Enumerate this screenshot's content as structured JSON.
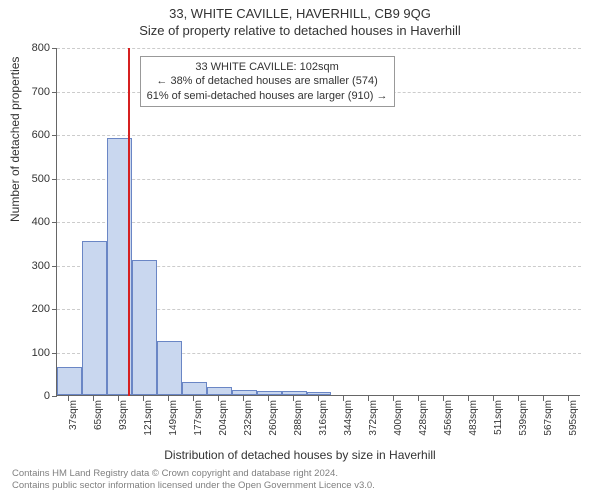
{
  "header": {
    "line1": "33, WHITE CAVILLE, HAVERHILL, CB9 9QG",
    "line2": "Size of property relative to detached houses in Haverhill"
  },
  "chart": {
    "type": "histogram",
    "ylabel": "Number of detached properties",
    "xlabel": "Distribution of detached houses by size in Haverhill",
    "ylim": [
      0,
      800
    ],
    "ytick_step": 100,
    "yticks": [
      0,
      100,
      200,
      300,
      400,
      500,
      600,
      700,
      800
    ],
    "background_color": "#ffffff",
    "grid_color": "#cccccc",
    "axis_color": "#666666",
    "bar_fill": "#c9d7ef",
    "bar_border": "#6a86c5",
    "categories": [
      "37sqm",
      "65sqm",
      "93sqm",
      "121sqm",
      "149sqm",
      "177sqm",
      "204sqm",
      "232sqm",
      "260sqm",
      "288sqm",
      "316sqm",
      "344sqm",
      "372sqm",
      "400sqm",
      "428sqm",
      "456sqm",
      "483sqm",
      "511sqm",
      "539sqm",
      "567sqm",
      "595sqm"
    ],
    "values": [
      65,
      355,
      590,
      310,
      125,
      30,
      18,
      12,
      10,
      10,
      8,
      0,
      0,
      0,
      0,
      0,
      0,
      0,
      0,
      0,
      0
    ],
    "marker": {
      "x_index": 2.33,
      "color": "#d62020"
    },
    "annotation": {
      "lines": [
        "33 WHITE CAVILLE: 102sqm",
        "← 38% of detached houses are smaller (574)",
        "61% of semi-detached houses are larger (910) →"
      ],
      "border_color": "#999999",
      "background": "#ffffff",
      "fontsize": 11
    },
    "label_fontsize": 12,
    "tick_fontsize": 11
  },
  "footer": {
    "line1": "Contains HM Land Registry data © Crown copyright and database right 2024.",
    "line2": "Contains public sector information licensed under the Open Government Licence v3.0."
  }
}
